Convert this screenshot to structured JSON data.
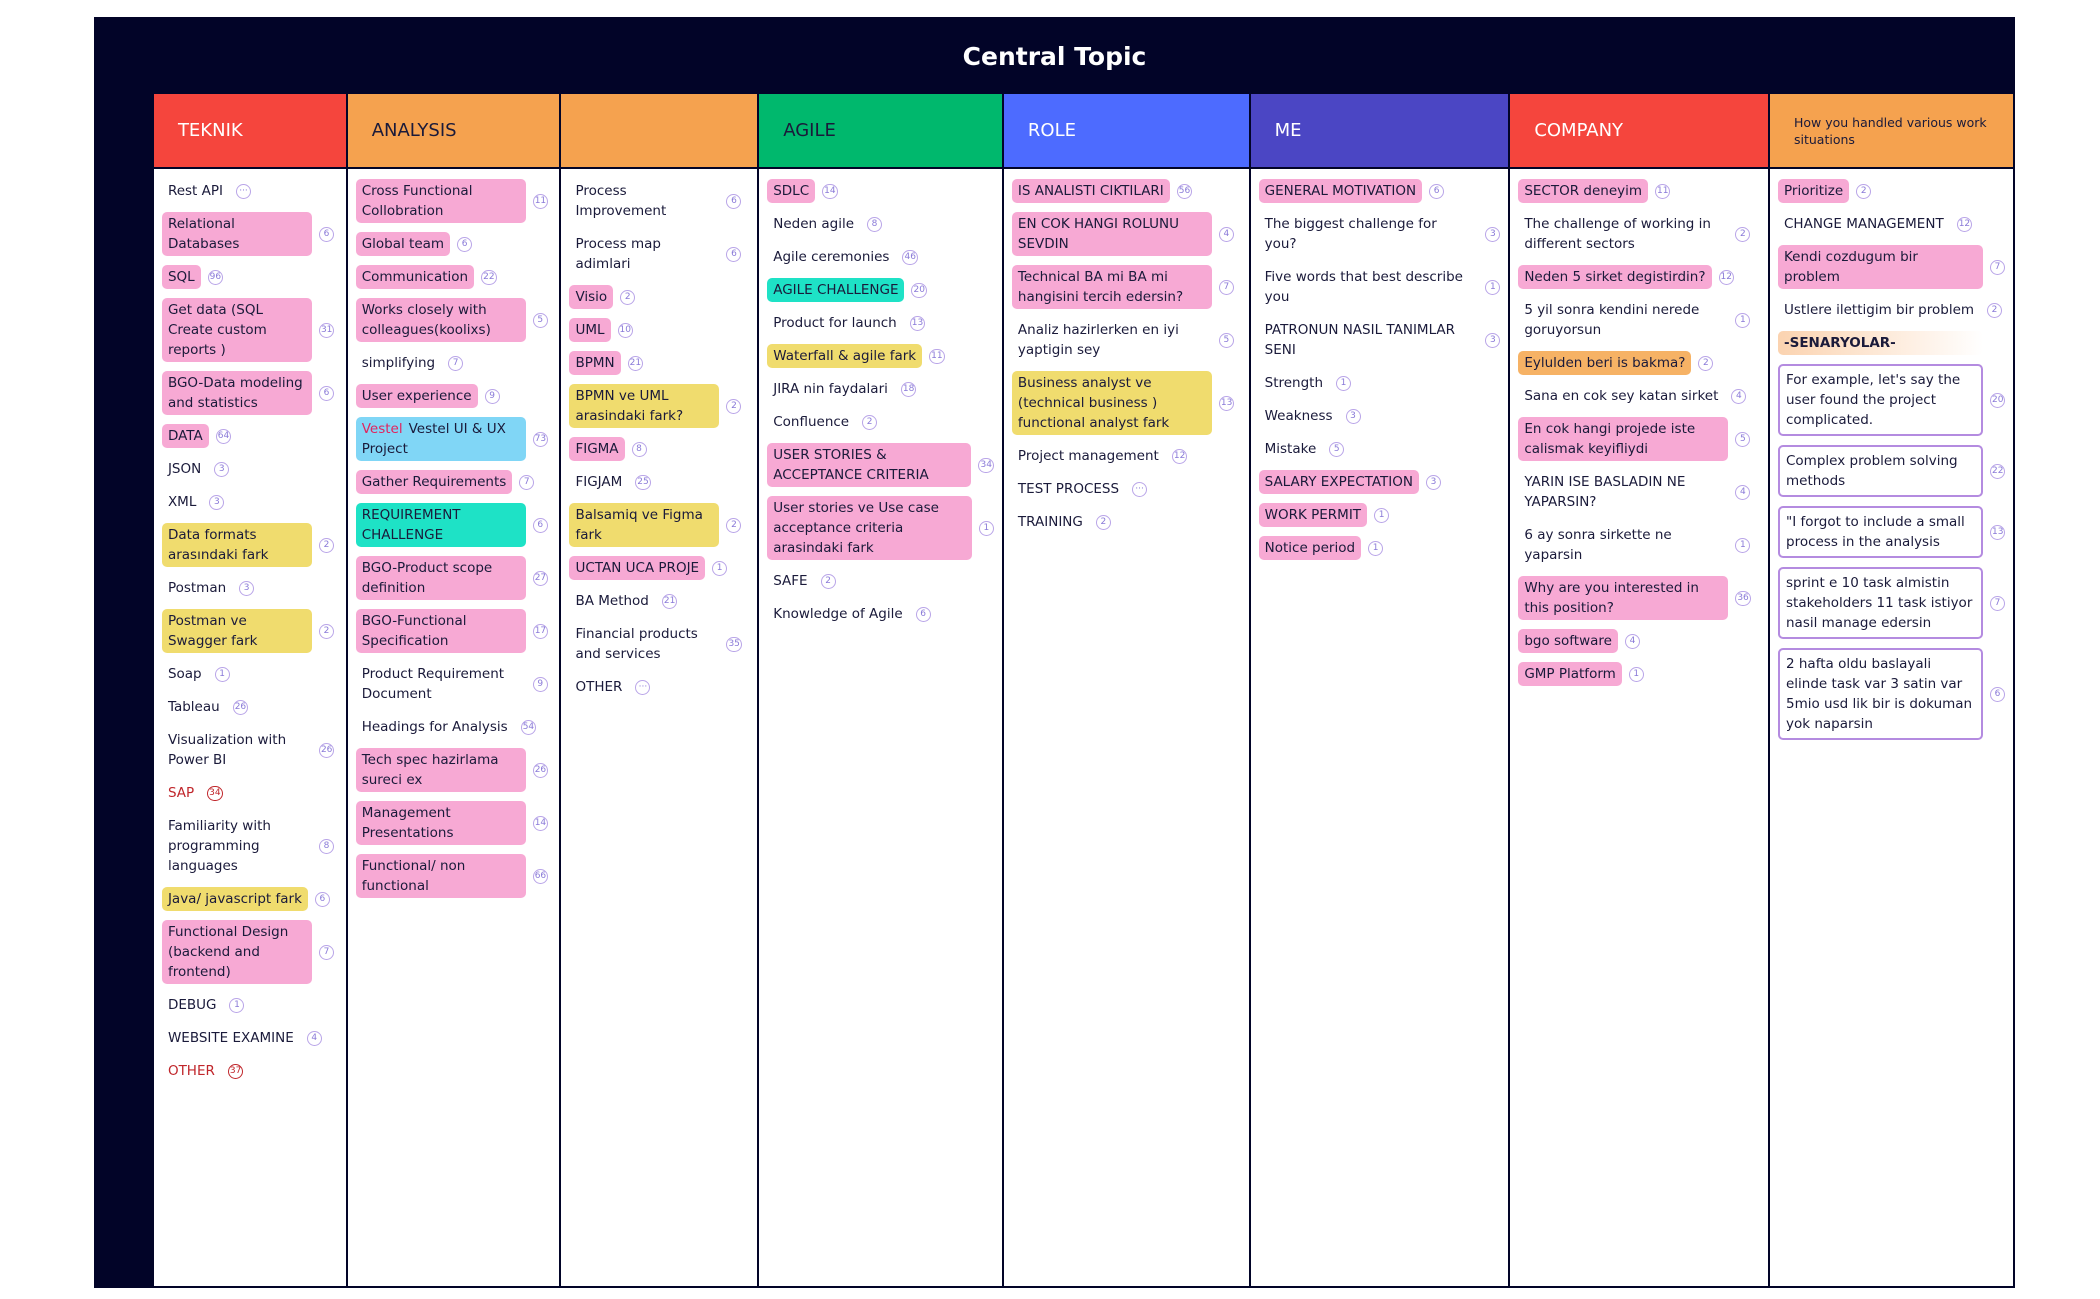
{
  "header": {
    "title": "Central Topic"
  },
  "columns": [
    {
      "title": "TEKNIK",
      "color": "#f5453d",
      "text_color": "#ffffff",
      "items": [
        {
          "text": "Rest API",
          "count": "···"
        },
        {
          "text": "Relational Databases",
          "count": 6,
          "fill": "#f7a9d4"
        },
        {
          "text": "SQL",
          "count": 96,
          "fill": "#f7a9d4"
        },
        {
          "text": "Get data (SQL Create custom reports )",
          "count": 31,
          "fill": "#f7a9d4"
        },
        {
          "text": "BGO-Data modeling and statistics",
          "count": 6,
          "fill": "#f7a9d4"
        },
        {
          "text": "DATA",
          "count": 64,
          "fill": "#f7a9d4"
        },
        {
          "text": "JSON",
          "count": 3
        },
        {
          "text": "XML",
          "count": 3
        },
        {
          "text": "Data formats arasındaki fark",
          "count": 2,
          "fill": "#f0dc6e"
        },
        {
          "text": "Postman",
          "count": 3
        },
        {
          "text": "Postman ve Swagger fark",
          "count": 2,
          "fill": "#f0dc6e"
        },
        {
          "text": "Soap",
          "count": 1
        },
        {
          "text": "Tableau",
          "count": 26
        },
        {
          "text": "Visualization with Power BI",
          "count": 26
        },
        {
          "text": "SAP",
          "count": 34,
          "text_color": "#c0262b"
        },
        {
          "text": "Familiarity with programming languages",
          "count": 8
        },
        {
          "text": "Java/ javascript fark",
          "count": 6,
          "fill": "#f0dc6e"
        },
        {
          "text": "Functional Design (backend and frontend)",
          "count": 7,
          "fill": "#f7a9d4"
        },
        {
          "text": "DEBUG",
          "count": 1
        },
        {
          "text": "WEBSITE EXAMINE",
          "count": 4
        },
        {
          "text": "OTHER",
          "count": 37,
          "text_color": "#c0262b"
        }
      ]
    },
    {
      "title": "ANALYSIS",
      "color": "#f5a24f",
      "text_color": "#1a1a3a",
      "items": [
        {
          "text": "Cross Functional Collobration",
          "count": 11,
          "fill": "#f7a9d4"
        },
        {
          "text": "Global team",
          "count": 6,
          "fill": "#f7a9d4"
        },
        {
          "text": "Communication",
          "count": 22,
          "fill": "#f7a9d4"
        },
        {
          "text": "Works closely with colleagues(koolixs)",
          "count": 5,
          "fill": "#f7a9d4"
        },
        {
          "text": "simplifying",
          "count": 7
        },
        {
          "text": "User experience",
          "count": 9,
          "fill": "#f7a9d4"
        },
        {
          "tag": "Vestel",
          "text": "Vestel UI & UX Project",
          "count": 73,
          "fill": "#80d6f6"
        },
        {
          "text": "Gather Requirements",
          "count": 7,
          "fill": "#f7a9d4"
        },
        {
          "text": "REQUIREMENT CHALLENGE",
          "count": 6,
          "fill": "#1ee2c6"
        },
        {
          "text": "BGO-Product scope definition",
          "count": 27,
          "fill": "#f7a9d4"
        },
        {
          "text": "BGO-Functional Specification",
          "count": 17,
          "fill": "#f7a9d4"
        },
        {
          "text": "Product Requirement Document",
          "count": 9
        },
        {
          "text": "Headings for Analysis",
          "count": 54
        },
        {
          "text": "Tech spec hazirlama sureci ex",
          "count": 26,
          "fill": "#f7a9d4"
        },
        {
          "text": "Management Presentations",
          "count": 14,
          "fill": "#f7a9d4"
        },
        {
          "text": "Functional/ non functional",
          "count": 66,
          "fill": "#f7a9d4"
        }
      ]
    },
    {
      "title": null,
      "color": "#f5a24f",
      "text_color": "#1a1a3a",
      "items": [
        {
          "text": "Process Improvement",
          "count": 6
        },
        {
          "text": "Process map adimlari",
          "count": 6
        },
        {
          "text": "Visio",
          "count": 2,
          "fill": "#f7a9d4"
        },
        {
          "text": "UML",
          "count": 10,
          "fill": "#f7a9d4"
        },
        {
          "text": "BPMN",
          "count": 21,
          "fill": "#f7a9d4"
        },
        {
          "text": "BPMN ve UML arasindaki fark?",
          "count": 2,
          "fill": "#f0dc6e"
        },
        {
          "text": "FIGMA",
          "count": 8,
          "fill": "#f7a9d4"
        },
        {
          "text": "FIGJAM",
          "count": 25
        },
        {
          "text": "Balsamiq ve Figma fark",
          "count": 2,
          "fill": "#f0dc6e"
        },
        {
          "text": "UCTAN UCA PROJE",
          "count": 1,
          "fill": "#f7a9d4"
        },
        {
          "text": "BA Method",
          "count": 21
        },
        {
          "text": "Financial products and services",
          "count": 35
        },
        {
          "text": "OTHER",
          "count": "···"
        }
      ]
    },
    {
      "title": "AGILE",
      "color": "#00b86d",
      "text_color": "#1a1a3a",
      "items": [
        {
          "text": "SDLC",
          "count": 14,
          "fill": "#f7a9d4"
        },
        {
          "text": "Neden agile",
          "count": 8
        },
        {
          "text": "Agile ceremonies",
          "count": 46
        },
        {
          "text": "AGILE CHALLENGE",
          "count": 20,
          "fill": "#1ee2c6"
        },
        {
          "text": "Product for launch",
          "count": 13
        },
        {
          "text": "Waterfall & agile fark",
          "count": 11,
          "fill": "#f0dc6e"
        },
        {
          "text": "JIRA nin faydalari",
          "count": 18
        },
        {
          "text": "Confluence",
          "count": 2
        },
        {
          "text": "USER STORIES & ACCEPTANCE CRITERIA",
          "count": 34,
          "fill": "#f7a9d4"
        },
        {
          "text": "User stories ve Use case acceptance criteria arasindaki fark",
          "count": 1,
          "fill": "#f7a9d4"
        },
        {
          "text": "SAFE",
          "count": 2
        },
        {
          "text": "Knowledge of Agile",
          "count": 6
        }
      ]
    },
    {
      "title": "ROLE",
      "color": "#4d6bff",
      "text_color": "#ffffff",
      "items": [
        {
          "text": "IS ANALISTI CIKTILARI",
          "count": 56,
          "fill": "#f7a9d4"
        },
        {
          "text": "EN COK HANGI ROLUNU SEVDIN",
          "count": 4,
          "fill": "#f7a9d4"
        },
        {
          "text": "Technical BA mi BA mi hangisini tercih edersin?",
          "count": 7,
          "fill": "#f7a9d4"
        },
        {
          "text": "Analiz hazirlerken en iyi yaptigin sey",
          "count": 5
        },
        {
          "text": "Business analyst ve (technical business ) functional analyst fark",
          "count": 13,
          "fill": "#f0dc6e"
        },
        {
          "text": "Project management",
          "count": 12
        },
        {
          "text": "TEST PROCESS",
          "count": "···"
        },
        {
          "text": "TRAINING",
          "count": 2
        }
      ]
    },
    {
      "title": "ME",
      "color": "#4b46c4",
      "text_color": "#ffffff",
      "items": [
        {
          "text": "GENERAL MOTIVATION",
          "count": 6,
          "fill": "#f7a9d4"
        },
        {
          "text": "The biggest challenge for you?",
          "count": 3
        },
        {
          "text": "Five words that best describe you",
          "count": 1
        },
        {
          "text": "PATRONUN NASIL TANIMLAR SENI",
          "count": 3
        },
        {
          "text": "Strength",
          "count": 1
        },
        {
          "text": "Weakness",
          "count": 3
        },
        {
          "text": "Mistake",
          "count": 5
        },
        {
          "text": "SALARY EXPECTATION",
          "count": 3,
          "fill": "#f7a9d4"
        },
        {
          "text": "WORK PERMIT",
          "count": 1,
          "fill": "#f7a9d4"
        },
        {
          "text": "Notice period",
          "count": 1,
          "fill": "#f7a9d4"
        }
      ]
    },
    {
      "title": "COMPANY",
      "color": "#f5453d",
      "text_color": "#ffffff",
      "items": [
        {
          "text": "SECTOR deneyim",
          "count": 11,
          "fill": "#f7a9d4"
        },
        {
          "text": "The challenge of working in different sectors",
          "count": 2
        },
        {
          "text": "Neden 5 sirket degistirdin?",
          "count": 12,
          "fill": "#f7a9d4"
        },
        {
          "text": "5 yil sonra kendini nerede goruyorsun",
          "count": 1
        },
        {
          "text": "Eylulden beri is bakma?",
          "count": 2,
          "fill": "#f6b265"
        },
        {
          "text": "Sana en cok sey katan sirket",
          "count": 4
        },
        {
          "text": "En cok hangi projede iste calismak keyifliydi",
          "count": 5,
          "fill": "#f7a9d4"
        },
        {
          "text": "YARIN ISE BASLADIN NE YAPARSIN?",
          "count": 4
        },
        {
          "text": "6 ay sonra sirkette ne yaparsin",
          "count": 1
        },
        {
          "text": "Why are you interested in this position?",
          "count": 36,
          "fill": "#f7a9d4"
        },
        {
          "text": "bgo software",
          "count": 4,
          "fill": "#f7a9d4"
        },
        {
          "text": "GMP Platform",
          "count": 1,
          "fill": "#f7a9d4"
        }
      ]
    },
    {
      "title": "How you handled various work situations",
      "color": "#f5a24f",
      "text_color": "#1a1a3a",
      "items": [
        {
          "text": "Prioritize",
          "count": 2,
          "fill": "#f7a9d4"
        },
        {
          "text": "CHANGE MANAGEMENT",
          "count": 12
        },
        {
          "text": "Kendi cozdugum bir problem",
          "count": 7,
          "fill": "#f7a9d4"
        },
        {
          "text": "Ustlere ilettigim bir problem",
          "count": 2
        },
        {
          "text": "-SENARYOLAR-",
          "highlight": "#fbd3b0"
        },
        {
          "text": "For example, let's say the user found the project complicated.",
          "count": 20,
          "outline": "#b48be0"
        },
        {
          "text": "Complex problem solving methods",
          "count": 22,
          "outline": "#b48be0"
        },
        {
          "text": "\"I forgot to include a small process in the analysis",
          "count": 13,
          "outline": "#b48be0"
        },
        {
          "text": "sprint e 10 task almistin stakeholders 11 task istiyor nasil manage edersin",
          "count": 7,
          "outline": "#b48be0"
        },
        {
          "text": "2 hafta oldu baslayali elinde task var 3 satin var 5mio usd lik bir is dokuman yok naparsin",
          "count": 6,
          "outline": "#b48be0"
        }
      ]
    }
  ]
}
